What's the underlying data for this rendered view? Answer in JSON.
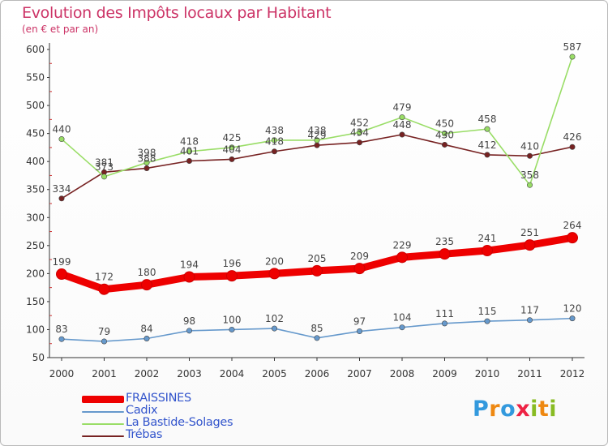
{
  "header": {
    "title": "Evolution des Impôts locaux par Habitant",
    "subtitle": "(en € et par an)"
  },
  "chart_data": {
    "type": "line",
    "title": "Evolution des Impôts locaux par Habitant",
    "subtitle": "(en € et par an)",
    "xlabel": "",
    "ylabel": "",
    "x": [
      "2000",
      "2001",
      "2002",
      "2003",
      "2004",
      "2005",
      "2006",
      "2007",
      "2008",
      "2009",
      "2010",
      "2011",
      "2012"
    ],
    "yticks": [
      50,
      100,
      150,
      200,
      250,
      300,
      350,
      400,
      450,
      500,
      550,
      600
    ],
    "ylim": [
      50,
      600
    ],
    "grid": false,
    "legend_position": "bottom-left",
    "series": [
      {
        "name": "FRAISSINES",
        "color": "#ee0000",
        "values": [
          199,
          172,
          180,
          194,
          196,
          200,
          205,
          209,
          229,
          235,
          241,
          251,
          264
        ]
      },
      {
        "name": "Cadix",
        "color": "#6699cc",
        "values": [
          83,
          79,
          84,
          98,
          100,
          102,
          85,
          97,
          104,
          111,
          115,
          117,
          120
        ]
      },
      {
        "name": "La Bastide-Solages",
        "color": "#99dd66",
        "values": [
          440,
          373,
          398,
          418,
          425,
          438,
          438,
          452,
          479,
          450,
          458,
          358,
          587
        ]
      },
      {
        "name": "Trébas",
        "color": "#772222",
        "values": [
          334,
          381,
          388,
          401,
          404,
          418,
          429,
          434,
          448,
          430,
          412,
          410,
          426
        ]
      }
    ]
  },
  "logo": {
    "letters": [
      "P",
      "r",
      "o",
      "x",
      "i",
      "t",
      "i"
    ],
    "colors": [
      "#3399dd",
      "#ee8811",
      "#3399dd",
      "#ee2244",
      "#88bb22",
      "#ee8811",
      "#88bb22"
    ]
  }
}
